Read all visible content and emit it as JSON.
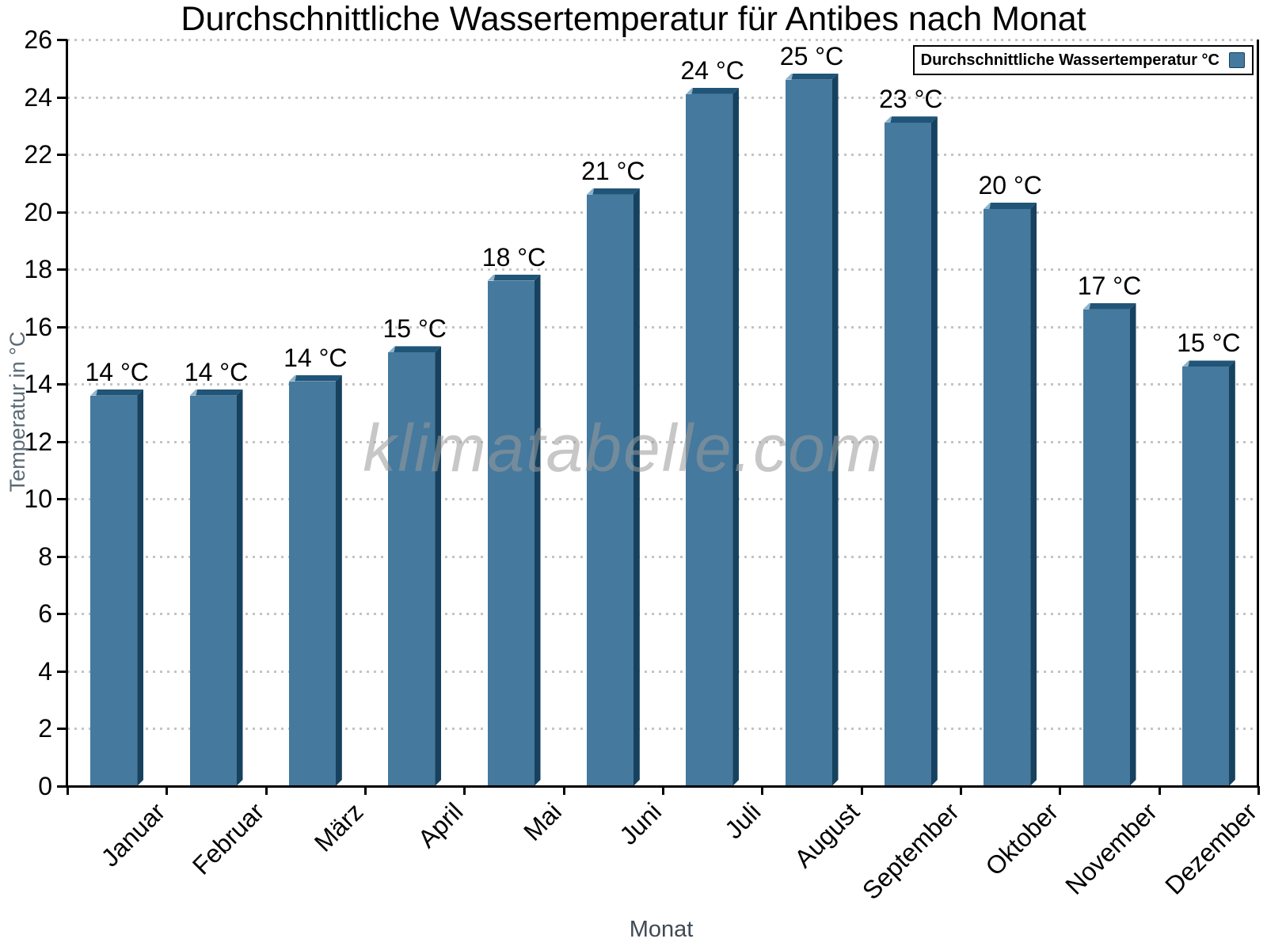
{
  "title": "Durchschnittliche Wassertemperatur für Antibes nach Monat",
  "legend": {
    "label": "Durchschnittliche Wassertemperatur °C",
    "position": "top-right"
  },
  "watermark": "klimatabelle.com",
  "chart_data": {
    "type": "bar",
    "title": "Durchschnittliche Wassertemperatur für Antibes nach Monat",
    "categories": [
      "Januar",
      "Februar",
      "März",
      "April",
      "Mai",
      "Juni",
      "Juli",
      "August",
      "September",
      "Oktober",
      "November",
      "Dezember"
    ],
    "values": [
      13.6,
      13.6,
      14.1,
      15.1,
      17.6,
      20.6,
      24.1,
      24.6,
      23.1,
      20.1,
      16.6,
      14.6
    ],
    "value_labels": [
      "14 °C",
      "14 °C",
      "14 °C",
      "15 °C",
      "18 °C",
      "21 °C",
      "24 °C",
      "25 °C",
      "23 °C",
      "20 °C",
      "17 °C",
      "15 °C"
    ],
    "series": [
      {
        "name": "Durchschnittliche Wassertemperatur °C",
        "values": [
          13.6,
          13.6,
          14.1,
          15.1,
          17.6,
          20.6,
          24.1,
          24.6,
          23.1,
          20.1,
          16.6,
          14.6
        ]
      }
    ],
    "xlabel": "Monat",
    "ylabel": "Temperatur in °C",
    "ylim": [
      0,
      26
    ],
    "ytick_interval": 2,
    "yticks": [
      0,
      2,
      4,
      6,
      8,
      10,
      12,
      14,
      16,
      18,
      20,
      22,
      24,
      26
    ],
    "grid": "horizontal-dotted",
    "legend_position": "top-right",
    "colors": {
      "bar_face": "#45799E",
      "bar_top": "#205578",
      "bar_side": "#16425F",
      "bar_highlight": "#8FB3C8",
      "gridline": "#C4C4C4",
      "axis": "#000000",
      "watermark_text": "#9A9A9A",
      "y_axis_title": "#5B6B76",
      "x_axis_title": "#3F4A54"
    }
  }
}
